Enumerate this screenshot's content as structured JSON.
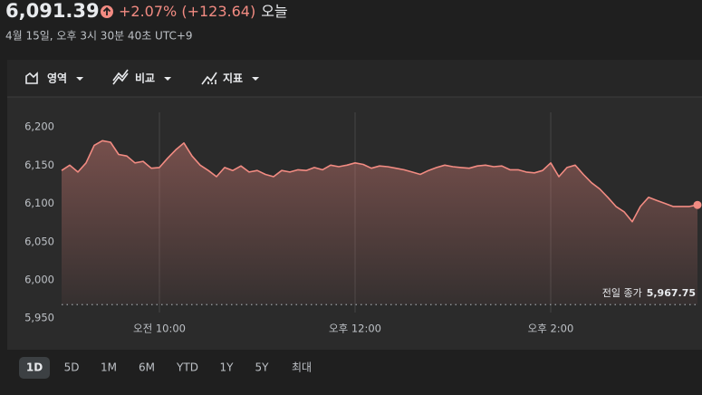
{
  "header": {
    "price": "6,091.39",
    "change": "+2.07% (+123.64)",
    "period": "오늘",
    "timestamp": "4월 15일, 오후 3시 30분 40초 UTC+9"
  },
  "toolbar": [
    "영역",
    "비교",
    "지표"
  ],
  "ranges": {
    "items": [
      "1D",
      "5D",
      "1M",
      "6M",
      "YTD",
      "1Y",
      "5Y",
      "최대"
    ],
    "selected": 0
  },
  "chart_data": {
    "type": "line",
    "color": "#f28b82",
    "x": [
      540,
      545,
      550,
      555,
      560,
      565,
      570,
      575,
      580,
      585,
      590,
      595,
      600,
      605,
      610,
      615,
      620,
      625,
      630,
      635,
      640,
      645,
      650,
      655,
      660,
      665,
      670,
      675,
      680,
      685,
      690,
      695,
      700,
      705,
      710,
      715,
      720,
      725,
      730,
      735,
      740,
      745,
      750,
      755,
      760,
      765,
      770,
      775,
      780,
      785,
      790,
      795,
      800,
      805,
      810,
      815,
      820,
      825,
      830,
      835,
      840,
      845,
      850,
      855,
      860,
      865,
      870,
      875,
      880,
      885,
      890,
      895,
      900,
      905,
      910,
      915,
      920,
      925,
      930
    ],
    "values": [
      6143,
      6150,
      6141,
      6153,
      6176,
      6182,
      6180,
      6164,
      6162,
      6153,
      6155,
      6146,
      6147,
      6159,
      6170,
      6179,
      6162,
      6150,
      6143,
      6135,
      6147,
      6143,
      6149,
      6141,
      6143,
      6138,
      6135,
      6143,
      6141,
      6144,
      6143,
      6147,
      6144,
      6150,
      6148,
      6150,
      6153,
      6151,
      6146,
      6149,
      6148,
      6146,
      6144,
      6141,
      6138,
      6143,
      6147,
      6150,
      6148,
      6147,
      6146,
      6149,
      6150,
      6148,
      6149,
      6144,
      6144,
      6141,
      6140,
      6143,
      6153,
      6135,
      6147,
      6150,
      6138,
      6127,
      6119,
      6108,
      6096,
      6089,
      6076,
      6096,
      6108,
      6104,
      6100,
      6096,
      6096,
      6096,
      6098
    ],
    "xlim": [
      540,
      930
    ],
    "ylim": [
      5910,
      6238
    ],
    "xticks": [
      {
        "value": 600,
        "label": "오전 10:00"
      },
      {
        "value": 720,
        "label": "오후 12:00"
      },
      {
        "value": 840,
        "label": "오후 2:00"
      }
    ],
    "yticks": [
      {
        "value": 5950,
        "label": "5,950"
      },
      {
        "value": 6000,
        "label": "6,000"
      },
      {
        "value": 6050,
        "label": "6,050"
      },
      {
        "value": 6100,
        "label": "6,100"
      },
      {
        "value": 6150,
        "label": "6,150"
      },
      {
        "value": 6200,
        "label": "6,200"
      }
    ],
    "reference_line": {
      "label": "전일 종가",
      "value": 5967.75,
      "value_label": "5,967.75"
    }
  }
}
